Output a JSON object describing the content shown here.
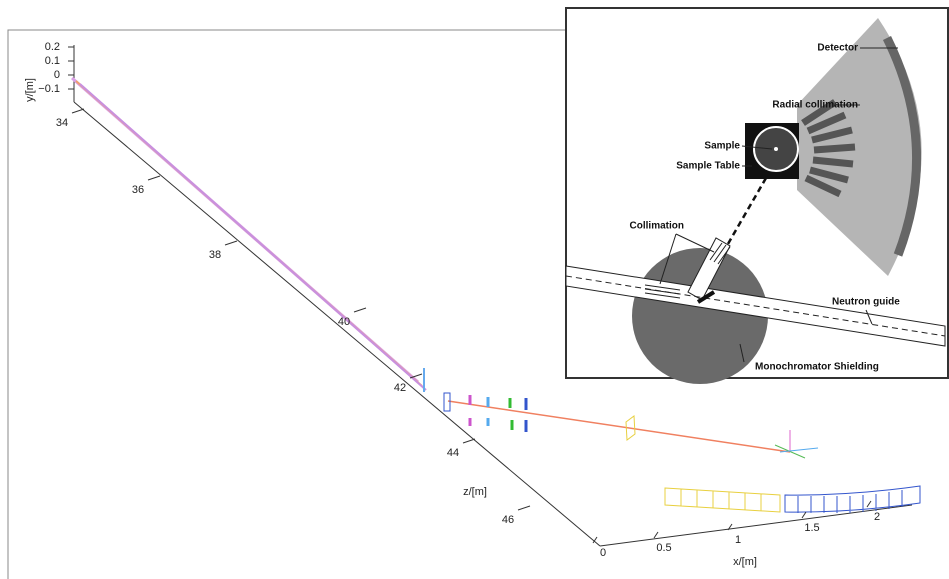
{
  "plot": {
    "y_axis": {
      "label": "y/[m]",
      "ticks": [
        "0.2",
        "0.1",
        "0",
        "−0.1"
      ]
    },
    "z_axis": {
      "label": "z/[m]",
      "ticks": [
        "34",
        "36",
        "38",
        "40",
        "42",
        "44",
        "46"
      ]
    },
    "x_axis": {
      "label": "x/[m]",
      "ticks": [
        "0",
        "0.5",
        "1",
        "1.5",
        "2"
      ]
    }
  },
  "inset": {
    "labels": [
      "Detector",
      "Radial collimation",
      "Sample",
      "Sample Table",
      "Collimation",
      "Neutron guide",
      "Monochromator Shielding"
    ]
  }
}
